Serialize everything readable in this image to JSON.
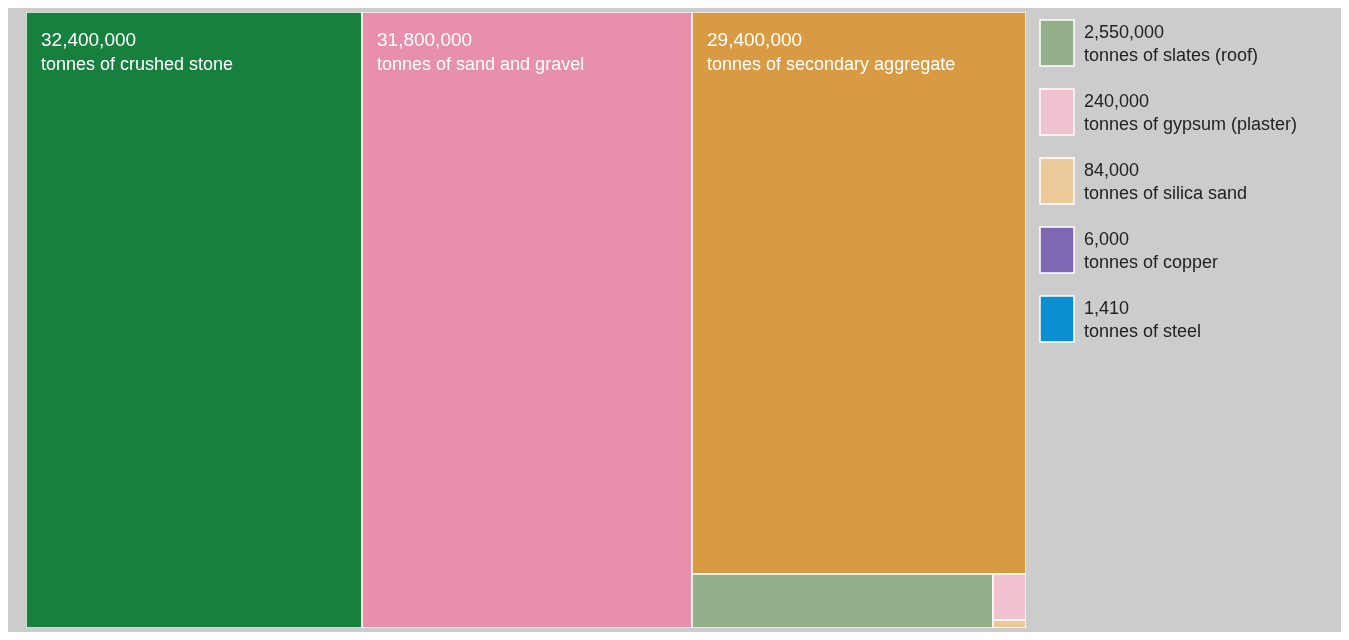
{
  "chart_data": {
    "type": "other",
    "categories": [
      "tonnes of crushed stone",
      "tonnes of sand and gravel",
      "tonnes of secondary aggregate",
      "tonnes of slates (roof)",
      "tonnes of gypsum (plaster)",
      "tonnes of silica sand",
      "tonnes of copper",
      "tonnes of steel"
    ],
    "values": [
      32400000,
      31800000,
      29400000,
      2550000,
      240000,
      84000,
      6000,
      1410
    ],
    "value_labels": [
      "32,400,000",
      "31,800,000",
      "29,400,000",
      "2,550,000",
      "240,000",
      "84,000",
      "6,000",
      "1,410"
    ],
    "colors": [
      "#17803f",
      "#e78fab",
      "#d89b44",
      "#93b08b",
      "#f0c2d0",
      "#ebc998",
      "#7f68b3",
      "#0a8fd0"
    ]
  }
}
